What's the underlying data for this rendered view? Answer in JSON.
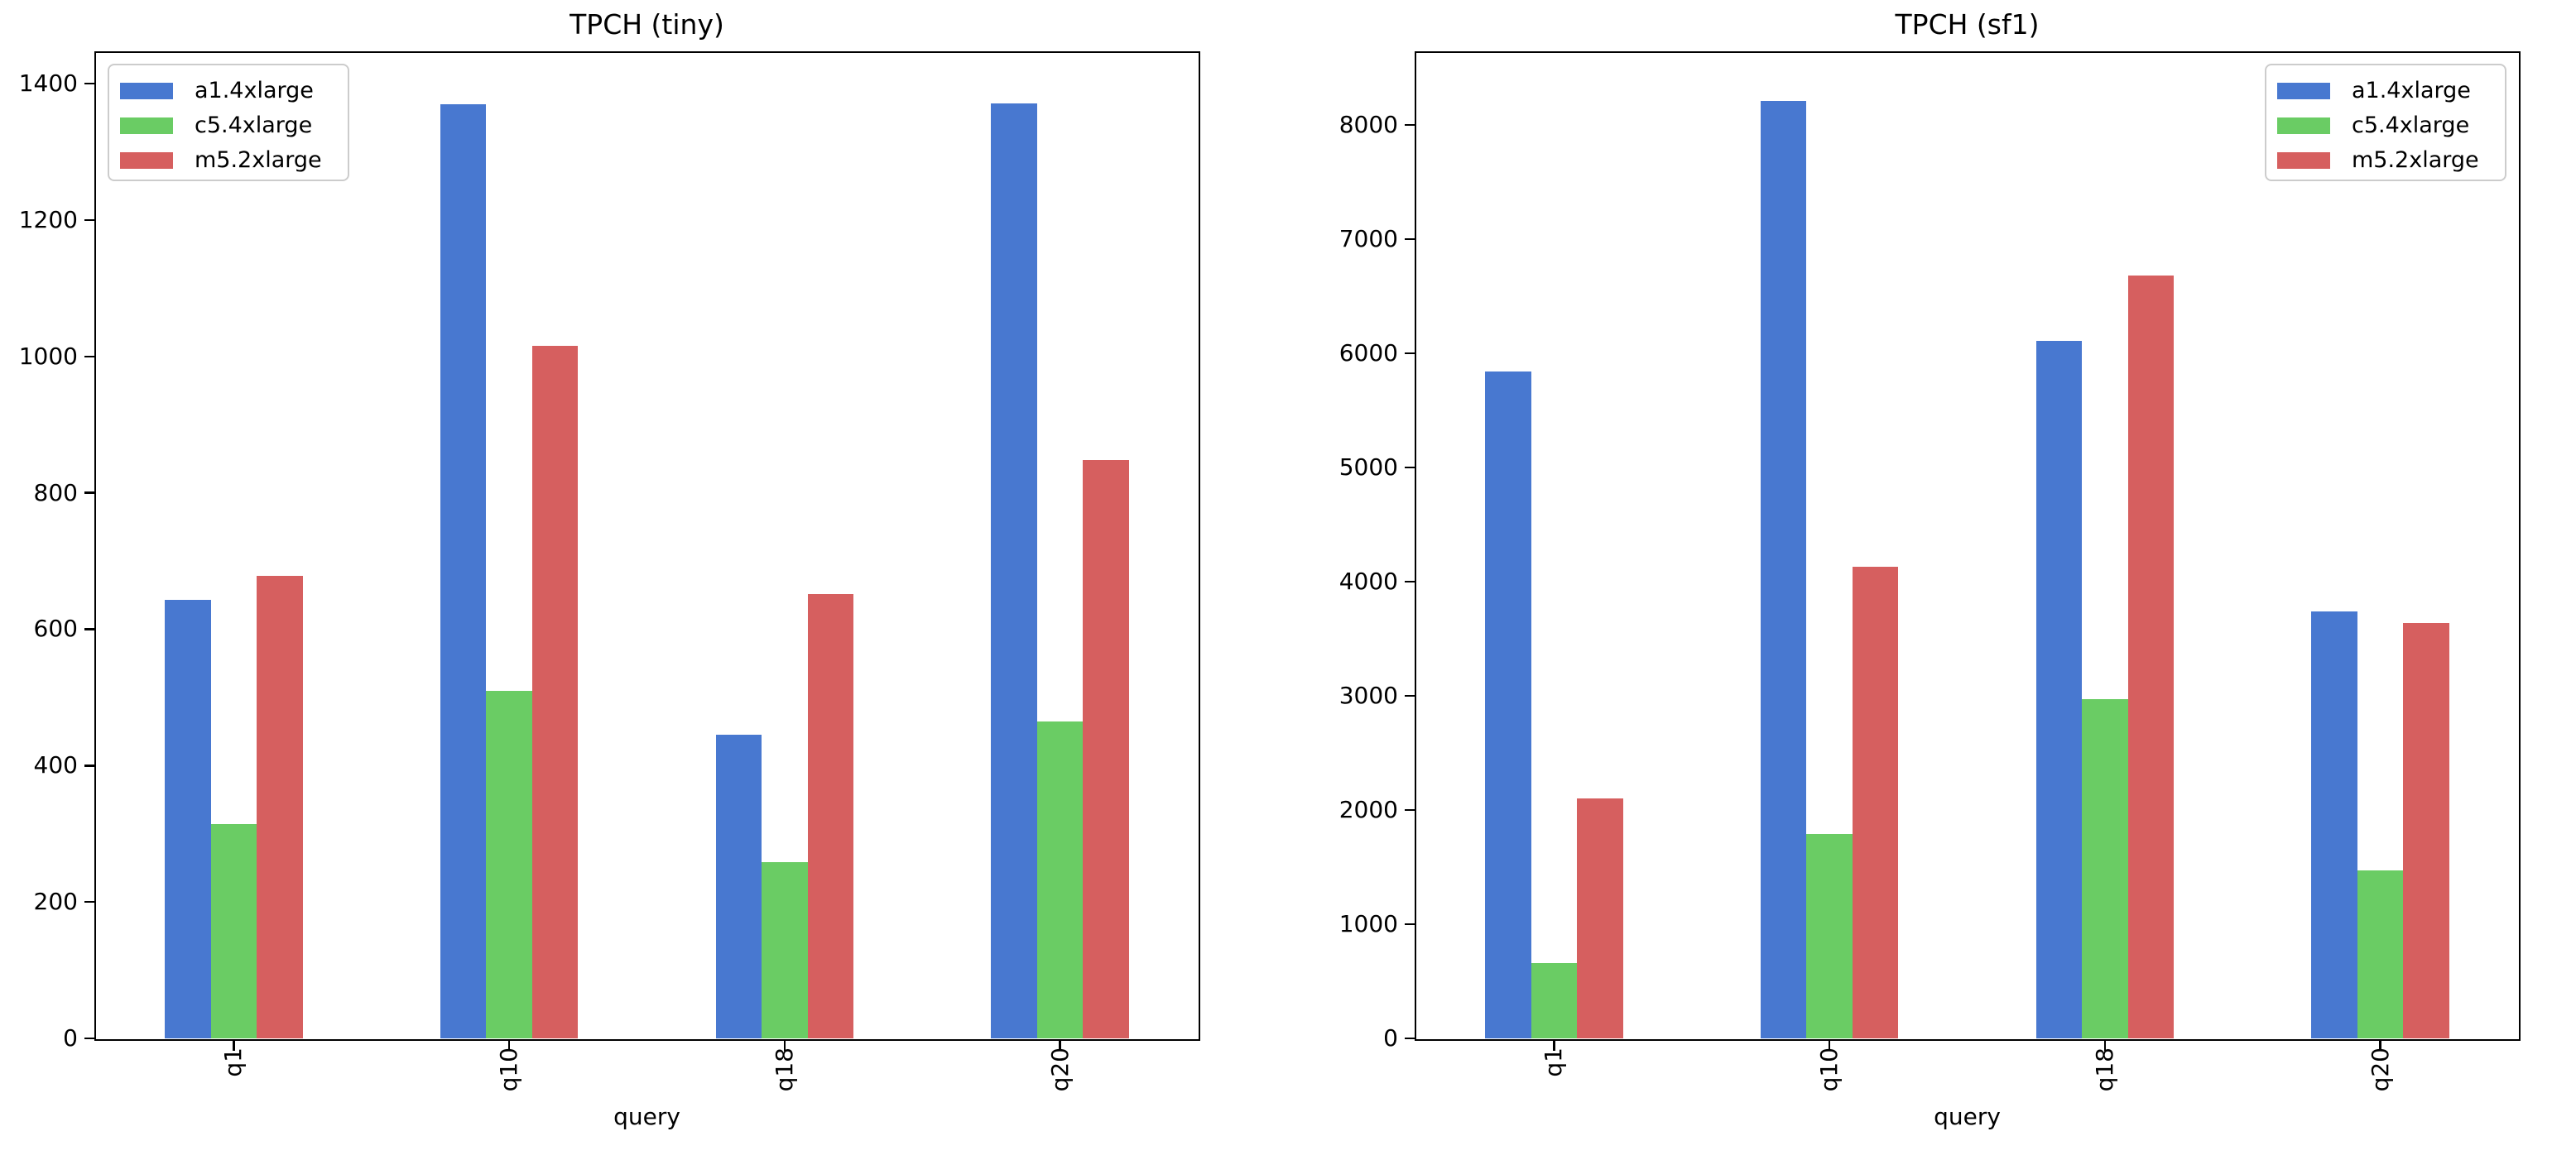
{
  "figure": {
    "background": "#ffffff"
  },
  "chart_data": [
    {
      "type": "bar",
      "title": "TPCH (tiny)",
      "xlabel": "query",
      "categories": [
        "q1",
        "q10",
        "q18",
        "q20"
      ],
      "series": [
        {
          "name": "a1.4xlarge",
          "color": "#4878D0",
          "values": [
            643,
            1370,
            445,
            1371
          ]
        },
        {
          "name": "c5.4xlarge",
          "color": "#6ACC64",
          "values": [
            314,
            510,
            258,
            465
          ]
        },
        {
          "name": "m5.2xlarge",
          "color": "#D65F5F",
          "values": [
            678,
            1016,
            652,
            848
          ]
        }
      ],
      "yticks": [
        0,
        200,
        400,
        600,
        800,
        1000,
        1200,
        1400
      ],
      "ylim": [
        0,
        1445
      ],
      "grid": false,
      "legend_position": "upper left"
    },
    {
      "type": "bar",
      "title": "TPCH (sf1)",
      "xlabel": "query",
      "categories": [
        "q1",
        "q10",
        "q18",
        "q20"
      ],
      "series": [
        {
          "name": "a1.4xlarge",
          "color": "#4878D0",
          "values": [
            5840,
            8210,
            6110,
            3740
          ]
        },
        {
          "name": "c5.4xlarge",
          "color": "#6ACC64",
          "values": [
            660,
            1790,
            2970,
            1470
          ]
        },
        {
          "name": "m5.2xlarge",
          "color": "#D65F5F",
          "values": [
            2100,
            4130,
            6680,
            3640
          ]
        }
      ],
      "yticks": [
        0,
        1000,
        2000,
        3000,
        4000,
        5000,
        6000,
        7000,
        8000
      ],
      "ylim": [
        0,
        8630
      ],
      "grid": false,
      "legend_position": "upper right"
    }
  ]
}
